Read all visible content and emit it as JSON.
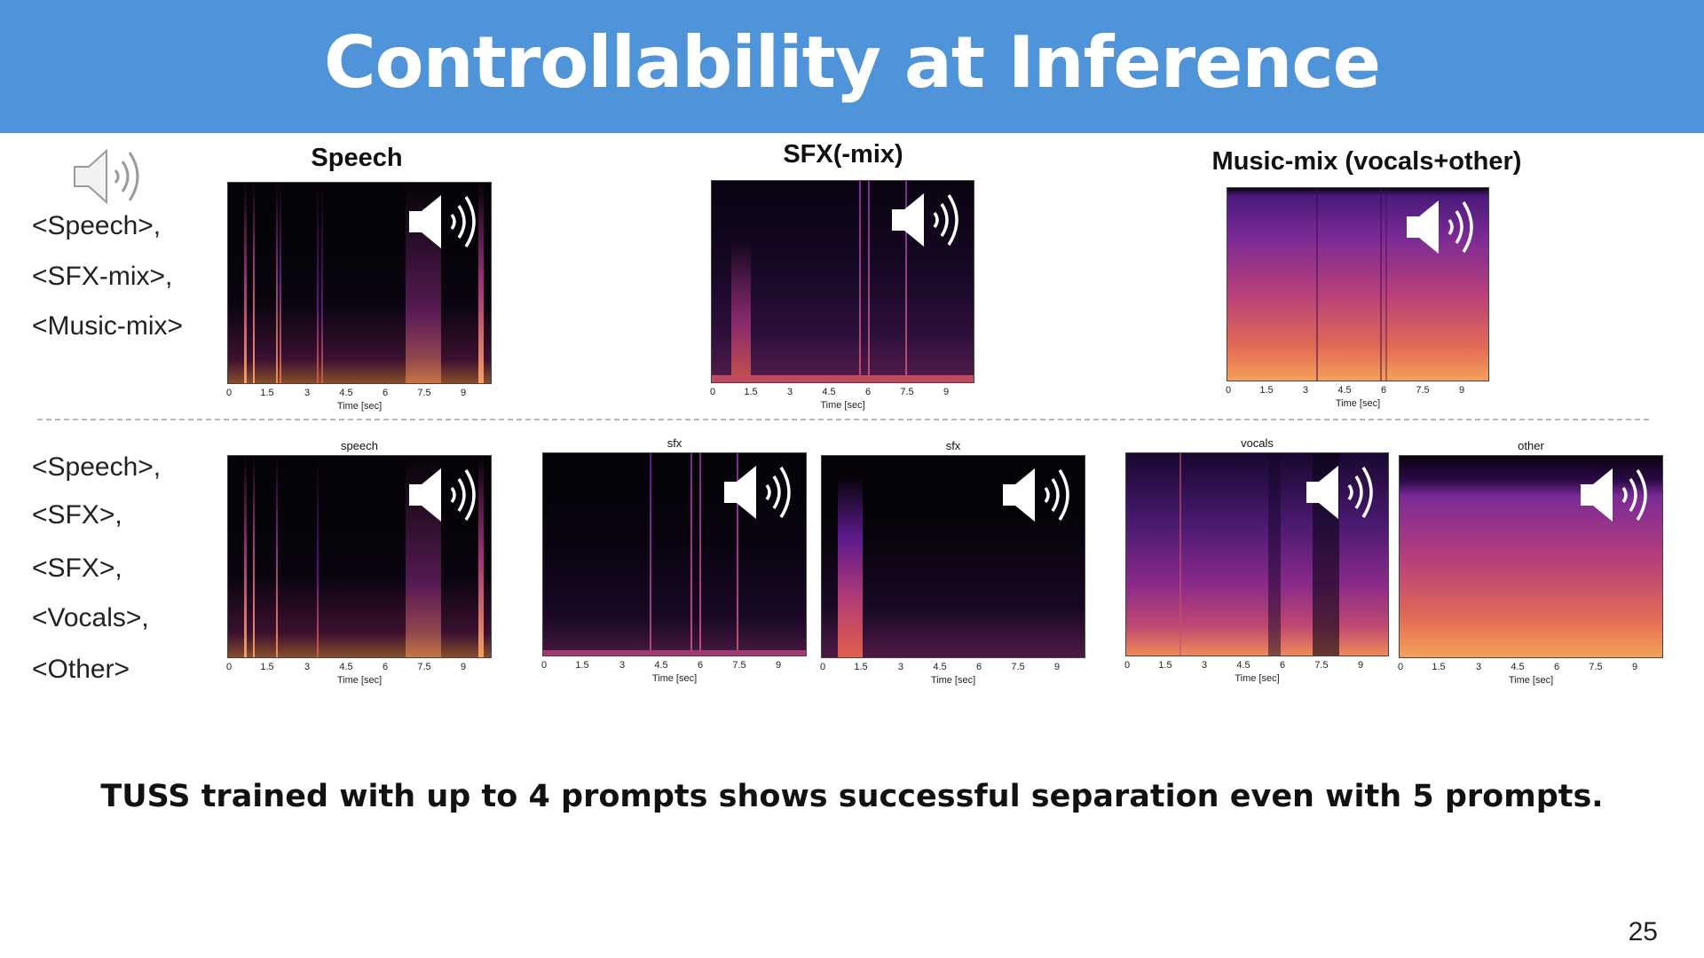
{
  "slide": {
    "title": "Controllability at Inference",
    "caption": "TUSS trained with up to 4 prompts shows successful separation even with 5 prompts.",
    "page_number": "25"
  },
  "top_prompts": [
    "<Speech>,",
    "<SFX-mix>,",
    "<Music-mix>"
  ],
  "bottom_prompts": [
    "<Speech>,",
    "<SFX>,",
    "<SFX>,",
    "<Vocals>,",
    "<Other>"
  ],
  "top_titles": [
    "Speech",
    "SFX(-mix)",
    "Music-mix (vocals+other)"
  ],
  "bottom_titles": [
    "speech",
    "sfx",
    "sfx",
    "vocals",
    "other"
  ],
  "axis": {
    "xlabel": "Time [sec]",
    "ticks": [
      "0",
      "1.5",
      "3",
      "4.5",
      "6",
      "7.5",
      "9"
    ]
  },
  "icons": [
    "speaker-icon",
    "play-audio-icon"
  ],
  "colors": {
    "banner": "#4f94d8",
    "spectrogram_dark": "#050308",
    "spectrogram_mid": "#6a1f8c",
    "spectrogram_hot": "#f28a4a"
  }
}
